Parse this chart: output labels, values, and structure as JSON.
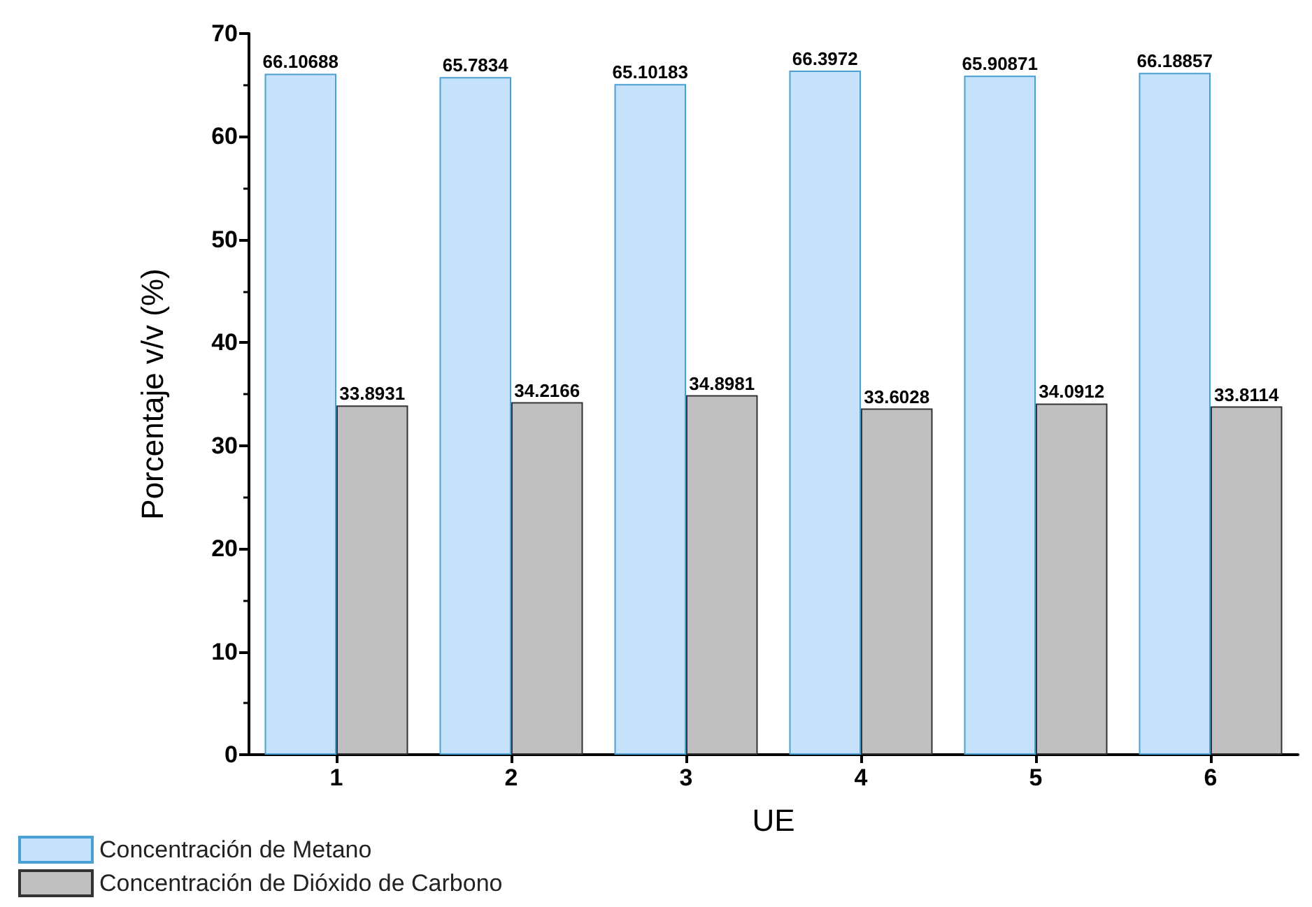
{
  "chart_data": {
    "type": "bar",
    "xlabel": "UE",
    "ylabel": "Porcentaje v/v (%)",
    "categories": [
      "1",
      "2",
      "3",
      "4",
      "5",
      "6"
    ],
    "series": [
      {
        "name": "Concentración de Metano",
        "color": "#c6e2fa",
        "values": [
          66.10688,
          65.7834,
          65.10183,
          66.3972,
          65.90871,
          66.18857
        ]
      },
      {
        "name": "Concentración de Dióxido de Carbono",
        "color": "#c0c0c0",
        "values": [
          33.8931,
          34.2166,
          34.8981,
          33.6028,
          34.0912,
          33.8114
        ]
      }
    ],
    "ylim": [
      0,
      70
    ],
    "yticks": [
      0,
      10,
      20,
      30,
      40,
      50,
      60,
      70
    ],
    "grid": false,
    "legend": "bottom left",
    "data_labels": true
  }
}
